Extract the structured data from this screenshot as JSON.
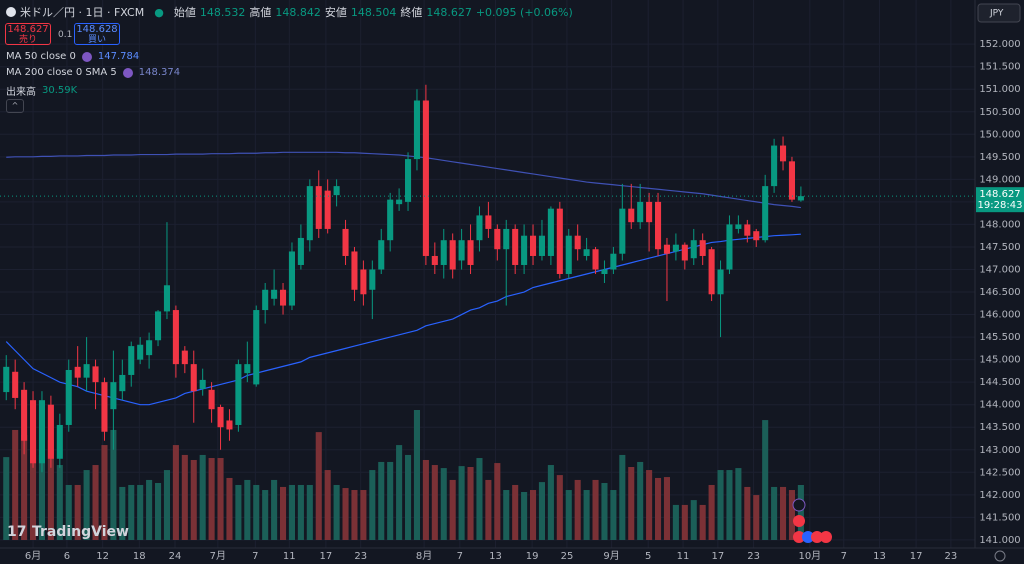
{
  "header": {
    "symbol": "米ドル／円 · 1日 · FXCM",
    "open_label": "始値",
    "high_label": "高値",
    "low_label": "安値",
    "close_label": "終値",
    "change": "+0.095 (+0.06%)"
  },
  "trade": {
    "sell_price": 148.627,
    "sell_label": "売り",
    "spread": 0.1,
    "buy_price": 148.628,
    "buy_label": "買い"
  },
  "currency": "JPY",
  "countdown": "19:28:43",
  "brand": "TradingView",
  "chart_data": {
    "type": "candlestick",
    "x": [
      -3,
      -2,
      -1,
      0,
      1,
      2,
      3,
      4,
      5,
      6,
      7,
      8,
      9,
      10,
      11,
      12,
      13,
      14,
      15,
      16,
      17,
      18,
      19,
      20,
      21,
      22,
      23,
      24,
      25,
      26,
      27,
      28,
      29,
      30,
      31,
      32,
      33,
      34,
      35,
      36,
      37,
      38,
      39,
      40,
      41,
      42,
      43,
      44,
      45,
      46,
      47,
      48,
      49,
      50,
      51,
      52,
      53,
      54,
      55,
      56,
      57,
      58,
      59,
      60,
      61,
      62,
      63,
      64,
      65,
      66,
      67,
      68,
      69,
      70,
      71,
      72,
      73,
      74,
      75,
      76,
      77,
      78,
      79,
      80,
      81,
      82,
      83,
      84,
      85,
      86
    ],
    "open": [
      144.28,
      144.73,
      144.33,
      144.1,
      142.7,
      144.0,
      142.8,
      143.55,
      144.84,
      144.6,
      144.85,
      144.5,
      143.9,
      144.3,
      144.66,
      145.0,
      145.1,
      145.43,
      146.07,
      146.1,
      145.2,
      144.9,
      144.35,
      144.33,
      143.95,
      143.65,
      143.55,
      144.7,
      144.45,
      146.1,
      146.35,
      146.55,
      146.2,
      147.1,
      147.65,
      148.85,
      148.75,
      148.65,
      147.9,
      147.4,
      147.0,
      146.55,
      147.0,
      147.65,
      148.45,
      148.5,
      149.45,
      150.75,
      147.3,
      147.1,
      147.65,
      147.2,
      147.65,
      147.65,
      148.2,
      147.9,
      147.45,
      147.9,
      147.1,
      147.75,
      147.3,
      147.3,
      148.35,
      146.9,
      147.75,
      147.3,
      147.45,
      146.9,
      147.0,
      147.35,
      148.35,
      148.05,
      148.5,
      148.5,
      147.55,
      147.4,
      147.55,
      147.25,
      147.65,
      147.45,
      146.45,
      147.0,
      147.9,
      148.0,
      147.85,
      147.65,
      148.85,
      149.75,
      149.4,
      148.532
    ],
    "high": [
      145.1,
      145.0,
      144.5,
      144.3,
      144.3,
      144.2,
      143.8,
      145.0,
      145.3,
      145.5,
      145.0,
      144.6,
      145.2,
      145.0,
      145.4,
      145.5,
      145.6,
      146.1,
      148.05,
      146.2,
      145.3,
      145.2,
      144.8,
      144.5,
      144.0,
      143.9,
      145.0,
      145.4,
      146.2,
      146.7,
      147.0,
      146.7,
      147.6,
      148.0,
      149.0,
      149.2,
      149.0,
      149.0,
      148.1,
      147.5,
      147.2,
      147.2,
      147.9,
      148.7,
      148.8,
      149.6,
      151.0,
      151.1,
      147.6,
      147.9,
      147.8,
      147.9,
      148.0,
      148.4,
      148.5,
      148.0,
      148.1,
      148.0,
      148.0,
      148.0,
      148.1,
      148.4,
      148.5,
      147.9,
      148.0,
      147.7,
      147.5,
      147.2,
      147.5,
      148.9,
      148.9,
      148.9,
      148.7,
      148.7,
      147.7,
      147.8,
      147.6,
      147.9,
      147.8,
      147.5,
      147.2,
      148.2,
      148.2,
      148.1,
      147.9,
      149.1,
      149.9,
      149.95,
      149.5,
      148.842
    ],
    "low": [
      144.1,
      143.9,
      142.9,
      142.6,
      142.5,
      142.6,
      142.6,
      143.4,
      144.4,
      144.3,
      143.9,
      143.2,
      143.0,
      144.1,
      144.4,
      144.9,
      144.8,
      145.3,
      145.9,
      144.6,
      144.7,
      143.6,
      144.2,
      143.6,
      143.0,
      143.2,
      143.4,
      144.5,
      144.4,
      145.8,
      146.2,
      146.0,
      146.1,
      147.0,
      147.4,
      147.7,
      147.8,
      148.4,
      147.1,
      146.3,
      146.2,
      145.9,
      146.9,
      147.4,
      148.3,
      148.3,
      149.2,
      147.1,
      146.9,
      146.8,
      146.8,
      147.0,
      146.9,
      147.4,
      147.7,
      147.2,
      146.2,
      146.9,
      146.9,
      147.1,
      147.2,
      147.1,
      146.8,
      146.8,
      147.2,
      147.2,
      146.9,
      146.7,
      146.9,
      147.2,
      147.9,
      147.9,
      147.4,
      147.3,
      146.3,
      147.2,
      147.0,
      147.1,
      147.1,
      146.3,
      145.5,
      146.9,
      147.8,
      147.6,
      147.5,
      147.6,
      148.7,
      149.2,
      148.5,
      148.504
    ],
    "close": [
      144.84,
      144.15,
      143.2,
      142.7,
      144.1,
      142.8,
      143.55,
      144.77,
      144.6,
      144.9,
      144.5,
      143.4,
      144.5,
      144.66,
      145.3,
      145.33,
      145.43,
      146.07,
      146.65,
      144.9,
      144.9,
      144.3,
      144.55,
      143.9,
      143.5,
      143.45,
      144.9,
      144.9,
      146.1,
      146.55,
      146.55,
      146.2,
      147.4,
      147.7,
      148.85,
      147.9,
      147.9,
      148.85,
      147.3,
      146.55,
      146.45,
      147.0,
      147.65,
      148.55,
      148.55,
      149.45,
      150.75,
      147.3,
      147.1,
      147.65,
      147.0,
      147.65,
      147.1,
      148.2,
      147.9,
      147.45,
      147.9,
      147.1,
      147.75,
      147.3,
      147.75,
      148.35,
      146.9,
      147.75,
      147.45,
      147.45,
      147.0,
      147.0,
      147.35,
      148.35,
      148.05,
      148.5,
      148.05,
      147.45,
      147.35,
      147.55,
      147.2,
      147.65,
      147.3,
      146.45,
      147.0,
      148.0,
      148.0,
      147.75,
      147.65,
      148.85,
      149.75,
      149.4,
      148.55,
      148.627
    ],
    "up_color": "#089981",
    "down_color": "#f23645",
    "xlim": [
      -3.7,
      105.5
    ],
    "xticks": [
      {
        "value": 0,
        "label": "6月"
      },
      {
        "value": 3.8,
        "label": "6"
      },
      {
        "value": 7.8,
        "label": "12"
      },
      {
        "value": 11.9,
        "label": "18"
      },
      {
        "value": 15.9,
        "label": "24"
      },
      {
        "value": 20.7,
        "label": "7月"
      },
      {
        "value": 24.9,
        "label": "7"
      },
      {
        "value": 28.7,
        "label": "11"
      },
      {
        "value": 32.8,
        "label": "17"
      },
      {
        "value": 36.7,
        "label": "23"
      },
      {
        "value": 43.8,
        "label": "8月"
      },
      {
        "value": 47.8,
        "label": "7"
      },
      {
        "value": 51.8,
        "label": "13"
      },
      {
        "value": 55.9,
        "label": "19"
      },
      {
        "value": 59.8,
        "label": "25"
      },
      {
        "value": 64.8,
        "label": "9月"
      },
      {
        "value": 68.9,
        "label": "5"
      },
      {
        "value": 72.8,
        "label": "11"
      },
      {
        "value": 76.7,
        "label": "17"
      },
      {
        "value": 80.7,
        "label": "23"
      },
      {
        "value": 87.0,
        "label": "10月"
      },
      {
        "value": 90.8,
        "label": "7"
      },
      {
        "value": 94.8,
        "label": "13"
      },
      {
        "value": 98.9,
        "label": "17"
      },
      {
        "value": 102.8,
        "label": "23"
      }
    ],
    "ylim": [
      140.82,
      152.98
    ],
    "yticks": [
      {
        "value": 141,
        "label": "141.000"
      },
      {
        "value": 141.5,
        "label": "141.500"
      },
      {
        "value": 142,
        "label": "142.000"
      },
      {
        "value": 142.5,
        "label": "142.500"
      },
      {
        "value": 143,
        "label": "143.000"
      },
      {
        "value": 143.5,
        "label": "143.500"
      },
      {
        "value": 144,
        "label": "144.000"
      },
      {
        "value": 144.5,
        "label": "144.500"
      },
      {
        "value": 145,
        "label": "145.000"
      },
      {
        "value": 145.5,
        "label": "145.500"
      },
      {
        "value": 146,
        "label": "146.000"
      },
      {
        "value": 146.5,
        "label": "146.500"
      },
      {
        "value": 147,
        "label": "147.000"
      },
      {
        "value": 147.5,
        "label": "147.500"
      },
      {
        "value": 148,
        "label": "148.000"
      },
      {
        "value": 148.5,
        "label": "148.500"
      },
      {
        "value": 149,
        "label": "149.000"
      },
      {
        "value": 149.5,
        "label": "149.500"
      },
      {
        "value": 150,
        "label": "150.000"
      },
      {
        "value": 150.5,
        "label": "150.500"
      },
      {
        "value": 151,
        "label": "151.000"
      },
      {
        "value": 151.5,
        "label": "151.500"
      },
      {
        "value": 152,
        "label": "152.000"
      }
    ],
    "grid": true,
    "lines": [
      {
        "name": "MA 50 close 0",
        "color": "#2962ff",
        "values": [
          145.4,
          145.2,
          145.0,
          144.8,
          144.7,
          144.6,
          144.5,
          144.45,
          144.4,
          144.3,
          144.25,
          144.2,
          144.15,
          144.1,
          144.05,
          144.0,
          144.0,
          144.05,
          144.1,
          144.15,
          144.25,
          144.3,
          144.35,
          144.4,
          144.45,
          144.5,
          144.55,
          144.65,
          144.7,
          144.75,
          144.8,
          144.85,
          144.9,
          144.95,
          145.05,
          145.1,
          145.15,
          145.2,
          145.25,
          145.3,
          145.35,
          145.4,
          145.45,
          145.5,
          145.55,
          145.6,
          145.65,
          145.75,
          145.8,
          145.85,
          145.9,
          146.0,
          146.1,
          146.15,
          146.25,
          146.3,
          146.4,
          146.45,
          146.5,
          146.6,
          146.65,
          146.7,
          146.75,
          146.8,
          146.85,
          146.9,
          146.95,
          147.0,
          147.05,
          147.1,
          147.15,
          147.2,
          147.25,
          147.3,
          147.35,
          147.4,
          147.45,
          147.5,
          147.55,
          147.6,
          147.62,
          147.65,
          147.67,
          147.69,
          147.71,
          147.73,
          147.75,
          147.76,
          147.77,
          147.784
        ]
      },
      {
        "name": "MA 200 close 0 SMA 5",
        "color": "#3f51b5",
        "values": [
          149.49,
          149.5,
          149.5,
          149.5,
          149.51,
          149.51,
          149.52,
          149.52,
          149.52,
          149.53,
          149.53,
          149.53,
          149.54,
          149.54,
          149.54,
          149.55,
          149.55,
          149.55,
          149.55,
          149.56,
          149.56,
          149.56,
          149.56,
          149.57,
          149.57,
          149.57,
          149.58,
          149.58,
          149.58,
          149.59,
          149.59,
          149.6,
          149.6,
          149.6,
          149.6,
          149.6,
          149.6,
          149.6,
          149.59,
          149.59,
          149.58,
          149.57,
          149.56,
          149.55,
          149.54,
          149.52,
          149.5,
          149.48,
          149.45,
          149.42,
          149.39,
          149.36,
          149.33,
          149.3,
          149.27,
          149.24,
          149.21,
          149.18,
          149.15,
          149.12,
          149.09,
          149.06,
          149.03,
          149.0,
          148.97,
          148.94,
          148.92,
          148.9,
          148.88,
          148.86,
          148.84,
          148.82,
          148.8,
          148.78,
          148.76,
          148.74,
          148.72,
          148.7,
          148.68,
          148.65,
          148.62,
          148.59,
          148.56,
          148.53,
          148.5,
          148.47,
          148.44,
          148.42,
          148.4,
          148.374
        ]
      }
    ],
    "volume": {
      "name": "出来高",
      "up_color": "#1b5f58",
      "down_color": "#7b3136",
      "values": [
        46.1,
        61.2,
        58.4,
        55.6,
        47.3,
        55.6,
        41.7,
        30.6,
        30.6,
        38.9,
        41.7,
        52.8,
        61.2,
        29.5,
        30.6,
        30.6,
        33.4,
        31.7,
        38.9,
        52.8,
        47.3,
        44.5,
        47.3,
        45.6,
        45.6,
        34.5,
        30.6,
        33.4,
        30.6,
        27.8,
        33.4,
        29.5,
        30.6,
        30.6,
        30.6,
        60.0,
        38.9,
        30.6,
        28.9,
        27.8,
        27.8,
        38.9,
        43.4,
        43.4,
        52.8,
        47.3,
        72.3,
        44.5,
        41.7,
        40.0,
        33.4,
        41.1,
        40.6,
        45.6,
        33.4,
        42.8,
        27.8,
        30.6,
        26.7,
        27.8,
        32.2,
        41.7,
        36.1,
        27.8,
        33.4,
        27.8,
        33.4,
        31.7,
        27.8,
        47.3,
        40.6,
        43.4,
        38.9,
        34.5,
        35.0,
        19.5,
        19.5,
        22.2,
        19.5,
        30.6,
        38.9,
        38.9,
        40.0,
        29.5,
        25.0,
        66.7,
        29.5,
        29.5,
        27.8,
        30.59
      ],
      "value_labels": [
        null,
        null,
        null,
        null,
        null,
        null,
        null,
        null,
        null,
        null,
        null,
        null,
        null,
        null,
        null,
        null,
        null,
        null,
        null,
        null,
        null,
        null,
        null,
        null,
        null,
        null,
        null,
        null,
        null,
        null,
        null,
        null,
        null,
        null,
        null,
        null,
        null,
        null,
        null,
        null,
        null,
        null,
        null,
        null,
        null,
        null,
        null,
        null,
        null,
        null,
        null,
        null,
        null,
        null,
        null,
        null,
        null,
        null,
        null,
        null,
        null,
        null,
        null,
        null,
        null,
        null,
        null,
        null,
        null,
        null,
        null,
        null,
        null,
        null,
        null,
        null,
        null,
        null,
        null,
        null,
        null,
        null,
        null,
        null,
        null,
        null,
        null,
        null,
        null,
        "30.59K"
      ]
    }
  }
}
